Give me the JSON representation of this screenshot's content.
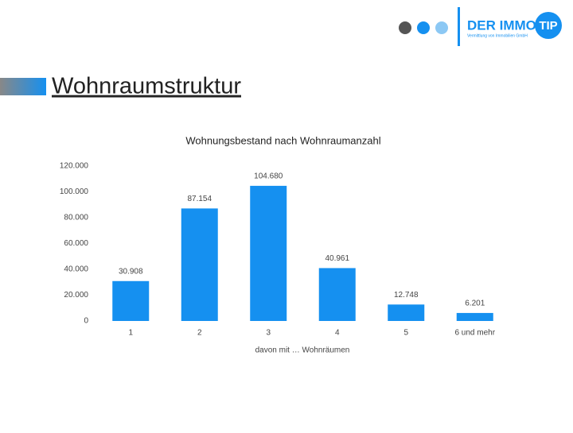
{
  "slide_title": "Wohnraumstruktur",
  "logo": {
    "brand": "DER IMMO",
    "badge": "TIP",
    "tagline": "Vermittlung von Immobilien GmbH"
  },
  "chart_data": {
    "type": "bar",
    "title": "Wohnungsbestand nach Wohnraumanzahl",
    "x_label": "davon mit … Wohnräumen",
    "categories": [
      "1",
      "2",
      "3",
      "4",
      "5",
      "6 und mehr"
    ],
    "values": [
      30908,
      87154,
      104680,
      40961,
      12748,
      6201
    ],
    "value_labels": [
      "30.908",
      "87.154",
      "104.680",
      "40.961",
      "12.748",
      "6.201"
    ],
    "color": "#1590f0",
    "ylim": [
      0,
      120000
    ],
    "yticks": [
      0,
      {
        "value": 20000,
        "label": "20.000"
      },
      {
        "value": 40000,
        "label": "40.000"
      },
      {
        "value": 60000,
        "label": "60.000"
      },
      {
        "value": 80000,
        "label": "80.000"
      },
      {
        "value": 100000,
        "label": "100.000"
      },
      {
        "value": 120000,
        "label": "120.000"
      }
    ],
    "grid": false
  }
}
